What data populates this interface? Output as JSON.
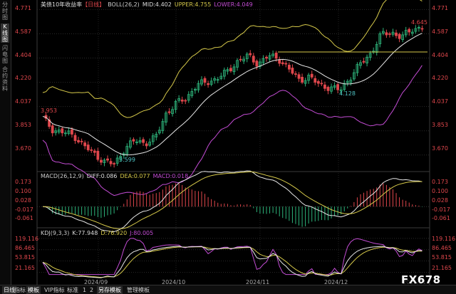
{
  "sidebar": {
    "items": [
      {
        "label": "分时图"
      },
      {
        "label": "K线图"
      },
      {
        "label": "闪电图"
      },
      {
        "label": "合约资料"
      }
    ]
  },
  "header": {
    "title": "美债10年收益率",
    "period": "【日线】",
    "boll_label": "BOLL(26,2)",
    "mid": "MID:4.402",
    "upper": "UPPER:4.755",
    "lower": "LOWER:4.049"
  },
  "macd_header": {
    "label": "MACD(26,12,9)",
    "diff": "DIFF:0.086",
    "dea": "DEA:0.077",
    "macd": "MACD:0.018"
  },
  "kdj_header": {
    "label": "KDJ(9,3,3)",
    "k": "K:77.948",
    "d": "D:76.920",
    "j": "J:80.005"
  },
  "price_axis": [
    "4.771",
    "4.587",
    "4.404",
    "4.220",
    "4.037",
    "3.853",
    "3.670"
  ],
  "macd_axis": [
    "0.173",
    "0.100",
    "0.028",
    "-0.017",
    "-0.061"
  ],
  "kdj_axis": [
    "119.116",
    "86.465",
    "53.815",
    "21.165"
  ],
  "annotations": {
    "high": "4.645",
    "early_high": "3.953",
    "low": "3.599",
    "dec_low": "4.128"
  },
  "x_labels": [
    "2024/09",
    "2024/10",
    "2024/11",
    "2024/12",
    "2025/01"
  ],
  "bottom_tabs": [
    {
      "label": "日线",
      "active": true
    },
    {
      "label": "指标",
      "active": false
    },
    {
      "label": "模板",
      "active": true
    },
    {
      "label": "VIP指标",
      "active": false
    },
    {
      "label": "标准",
      "active": false
    },
    {
      "label": "1",
      "active": false
    },
    {
      "label": "2",
      "active": false
    },
    {
      "label": "另存模板",
      "active": true
    },
    {
      "label": "管理模板",
      "active": false
    }
  ],
  "logo": "FX678",
  "colors": {
    "up": "#2db37a",
    "down": "#e0474c",
    "boll_upper": "#d6c94a",
    "boll_mid": "#e8e8e8",
    "boll_lower": "#c34cd4",
    "dea": "#d6c94a",
    "diff": "#e8e8e8",
    "kdj_j": "#c34cd4"
  },
  "chart_data": {
    "type": "candlestick",
    "title": "美债10年收益率",
    "x": [
      "2024/09",
      "2024/10",
      "2024/11",
      "2024/12",
      "2025/01"
    ],
    "ylim": [
      3.55,
      4.8
    ],
    "close_path": [
      3.95,
      3.86,
      3.84,
      3.82,
      3.74,
      3.68,
      3.62,
      3.6,
      3.72,
      3.78,
      3.76,
      3.8,
      3.98,
      4.06,
      4.1,
      4.2,
      4.22,
      4.25,
      4.3,
      4.38,
      4.42,
      4.36,
      4.42,
      4.4,
      4.32,
      4.24,
      4.26,
      4.2,
      4.18,
      4.16,
      4.26,
      4.36,
      4.44,
      4.58,
      4.6,
      4.56,
      4.62,
      4.64
    ],
    "annotated_values": {
      "high": 4.645,
      "early_high": 3.953,
      "low": 3.599,
      "dec_low": 4.128
    },
    "boll": {
      "mid": 4.402,
      "upper": 4.755,
      "lower": 4.049
    },
    "macd": {
      "diff": 0.086,
      "dea": 0.077,
      "macd": 0.018,
      "ylim": [
        -0.08,
        0.19
      ]
    },
    "kdj": {
      "k": 77.948,
      "d": 76.92,
      "j": 80.005,
      "ylim": [
        10,
        125
      ]
    }
  }
}
